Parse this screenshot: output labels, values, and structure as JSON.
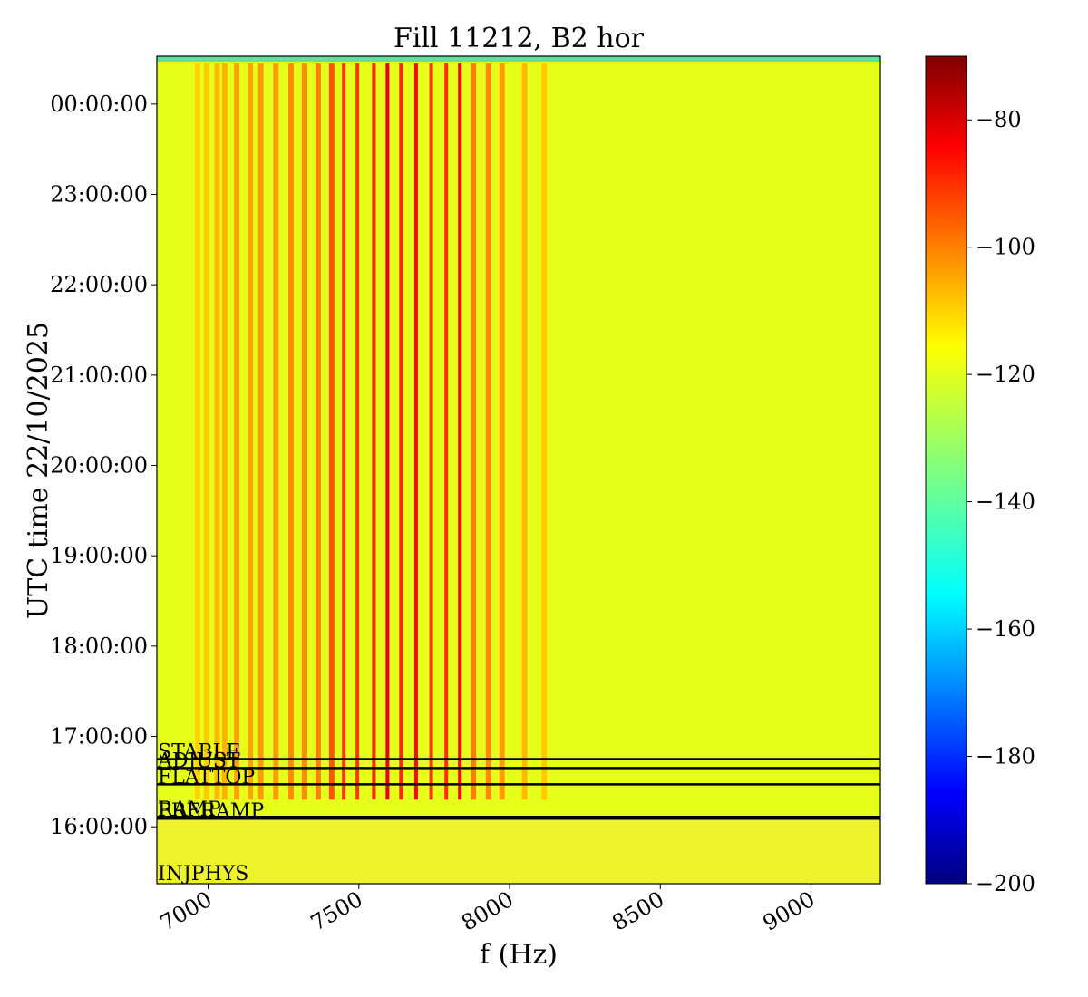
{
  "chart_data": {
    "type": "heatmap",
    "title": "Fill 11212, B2 hor",
    "xlabel": "f (Hz)",
    "ylabel": "UTC time 22/10/2025",
    "xlim": [
      6830,
      9230
    ],
    "x_ticks": [
      7000,
      7500,
      8000,
      8500,
      9000
    ],
    "x_tick_labels": [
      "7000",
      "7500",
      "8000",
      "8500",
      "9000"
    ],
    "y_range_hours": [
      15.37,
      24.53
    ],
    "y_ticks_hours": [
      16,
      17,
      18,
      19,
      20,
      21,
      22,
      23,
      24
    ],
    "y_tick_labels": [
      "16:00:00",
      "17:00:00",
      "18:00:00",
      "19:00:00",
      "20:00:00",
      "21:00:00",
      "22:00:00",
      "23:00:00",
      "00:00:00"
    ],
    "colorbar": {
      "colormap": "jet",
      "range": [
        -200,
        -70
      ],
      "ticks": [
        -200,
        -180,
        -160,
        -140,
        -120,
        -100,
        -80
      ],
      "tick_labels": [
        "−200",
        "−180",
        "−160",
        "−140",
        "−120",
        "−100",
        "−80"
      ]
    },
    "background_level": -122,
    "lines_start_hour": 16.3,
    "lines_end_hour": 24.45,
    "spectral_lines": [
      {
        "f": 6965,
        "level": -113
      },
      {
        "f": 6995,
        "level": -112
      },
      {
        "f": 7030,
        "level": -110
      },
      {
        "f": 7055,
        "level": -109
      },
      {
        "f": 7095,
        "level": -107
      },
      {
        "f": 7140,
        "level": -107
      },
      {
        "f": 7175,
        "level": -106
      },
      {
        "f": 7225,
        "level": -106
      },
      {
        "f": 7275,
        "level": -104
      },
      {
        "f": 7320,
        "level": -104
      },
      {
        "f": 7365,
        "level": -103
      },
      {
        "f": 7410,
        "level": -97
      },
      {
        "f": 7450,
        "level": -93
      },
      {
        "f": 7495,
        "level": -93
      },
      {
        "f": 7550,
        "level": -90
      },
      {
        "f": 7595,
        "level": -84
      },
      {
        "f": 7640,
        "level": -91
      },
      {
        "f": 7690,
        "level": -87
      },
      {
        "f": 7740,
        "level": -93
      },
      {
        "f": 7790,
        "level": -92
      },
      {
        "f": 7835,
        "level": -87
      },
      {
        "f": 7880,
        "level": -102
      },
      {
        "f": 7930,
        "level": -104
      },
      {
        "f": 7975,
        "level": -106
      },
      {
        "f": 8050,
        "level": -110
      },
      {
        "f": 8115,
        "level": -112
      }
    ],
    "modes": [
      {
        "name": "STABLE",
        "hour": 16.75
      },
      {
        "name": "ADJUST",
        "hour": 16.65
      },
      {
        "name": "FLATTOP",
        "hour": 16.47
      },
      {
        "name": "RAMP",
        "hour": 16.11
      },
      {
        "name": "PRERAMP",
        "hour": 16.09
      },
      {
        "name": "INJPHYS",
        "hour": 15.4
      }
    ]
  }
}
